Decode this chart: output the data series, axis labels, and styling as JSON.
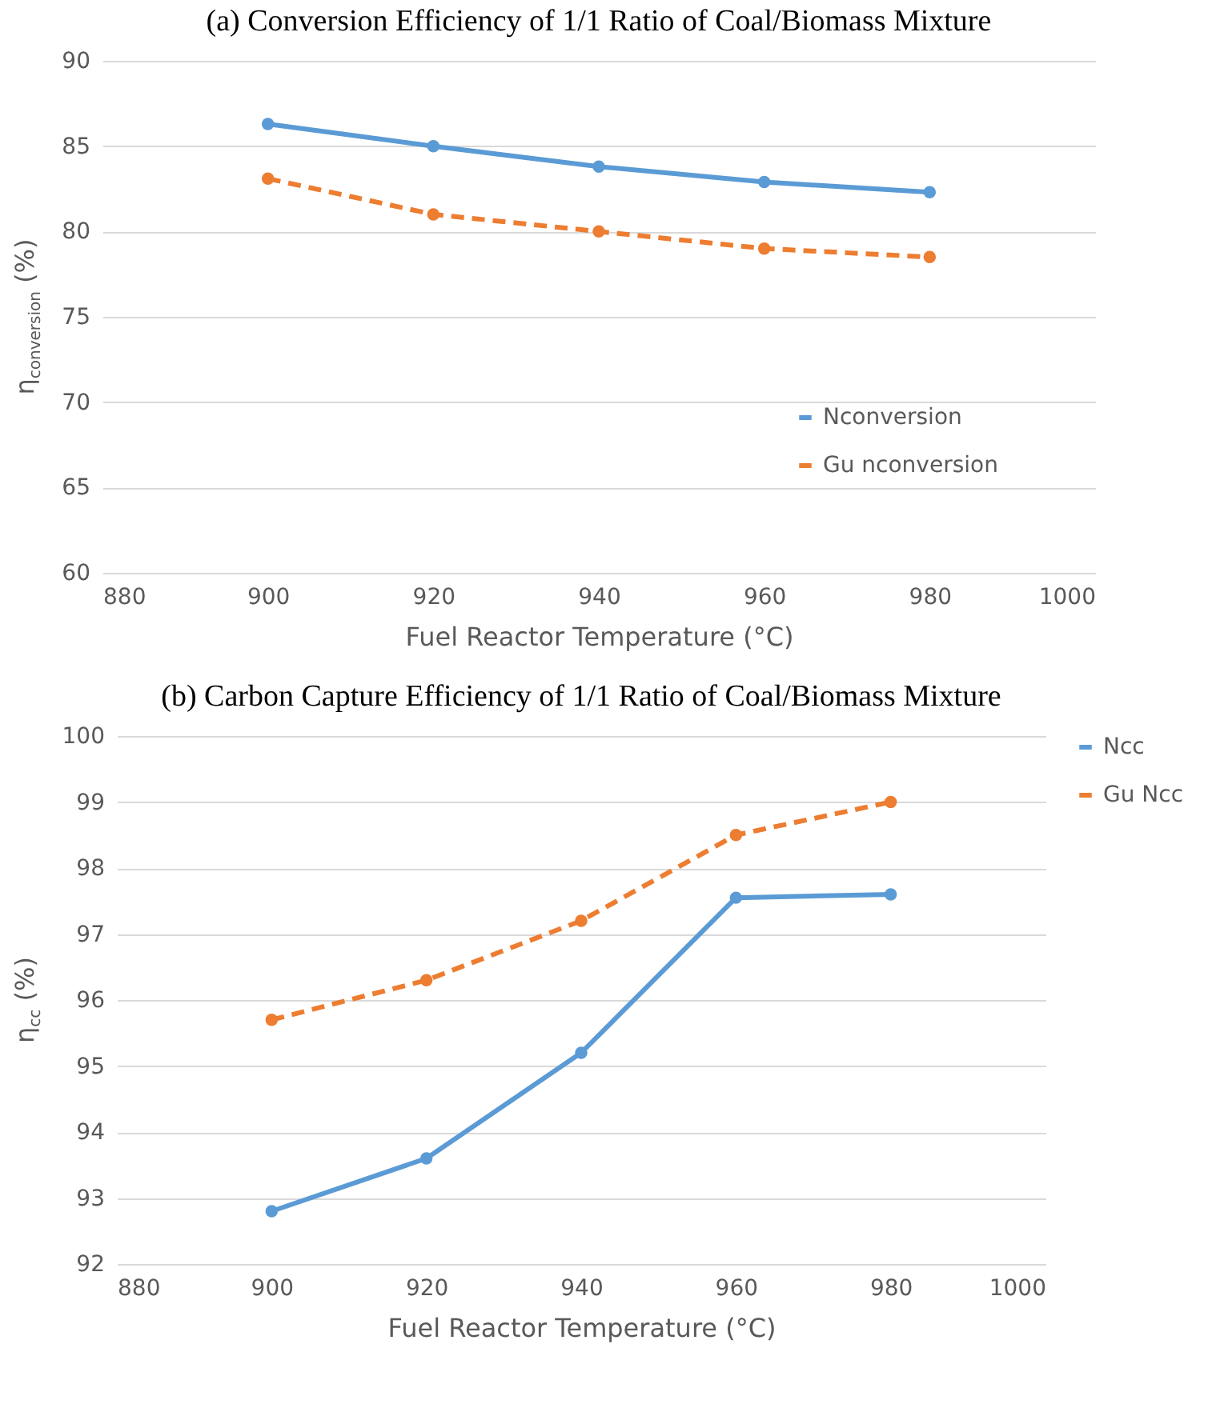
{
  "chart_data": [
    {
      "type": "line",
      "title": "(a) Conversion Efficiency of 1/1 Ratio of Coal/Biomass Mixture",
      "xlabel": "Fuel Reactor Temperature (°C)",
      "ylabel": "η$_{conversion}$ (%)",
      "x": [
        900,
        920,
        940,
        960,
        980
      ],
      "xlim": [
        880,
        1000
      ],
      "xticks": [
        880,
        900,
        920,
        940,
        960,
        980,
        1000
      ],
      "ylim": [
        60,
        90
      ],
      "yticks": [
        60,
        65,
        70,
        75,
        80,
        85,
        90
      ],
      "grid": "y",
      "legend": "bottom right",
      "marker": "circle",
      "series": [
        {
          "name": "Nconversion",
          "color": "#5b9bd5",
          "line_style": "solid",
          "values": [
            86.3,
            85.0,
            83.8,
            82.9,
            82.3
          ]
        },
        {
          "name": "Gu nconversion",
          "color": "#ed7d31",
          "line_style": "dashed",
          "values": [
            83.1,
            81.0,
            80.0,
            79.0,
            78.5
          ]
        }
      ]
    },
    {
      "type": "line",
      "title": "(b) Carbon Capture Efficiency of 1/1 Ratio of Coal/Biomass Mixture",
      "xlabel": "Fuel Reactor Temperature (°C)",
      "ylabel": "η$_{cc}$ (%)",
      "x": [
        900,
        920,
        940,
        960,
        980
      ],
      "xlim": [
        880,
        1000
      ],
      "xticks": [
        880,
        900,
        920,
        940,
        960,
        980,
        1000
      ],
      "ylim": [
        92,
        100
      ],
      "yticks": [
        92,
        93,
        94,
        95,
        96,
        97,
        98,
        99,
        100
      ],
      "grid": "y",
      "legend": "right",
      "marker": "circle",
      "series": [
        {
          "name": "Ncc",
          "color": "#5b9bd5",
          "line_style": "solid",
          "values": [
            92.8,
            93.6,
            95.2,
            97.55,
            97.6
          ]
        },
        {
          "name": "Gu Ncc",
          "color": "#ed7d31",
          "line_style": "dashed",
          "values": [
            95.7,
            96.3,
            97.2,
            98.5,
            99.0
          ]
        }
      ]
    }
  ]
}
